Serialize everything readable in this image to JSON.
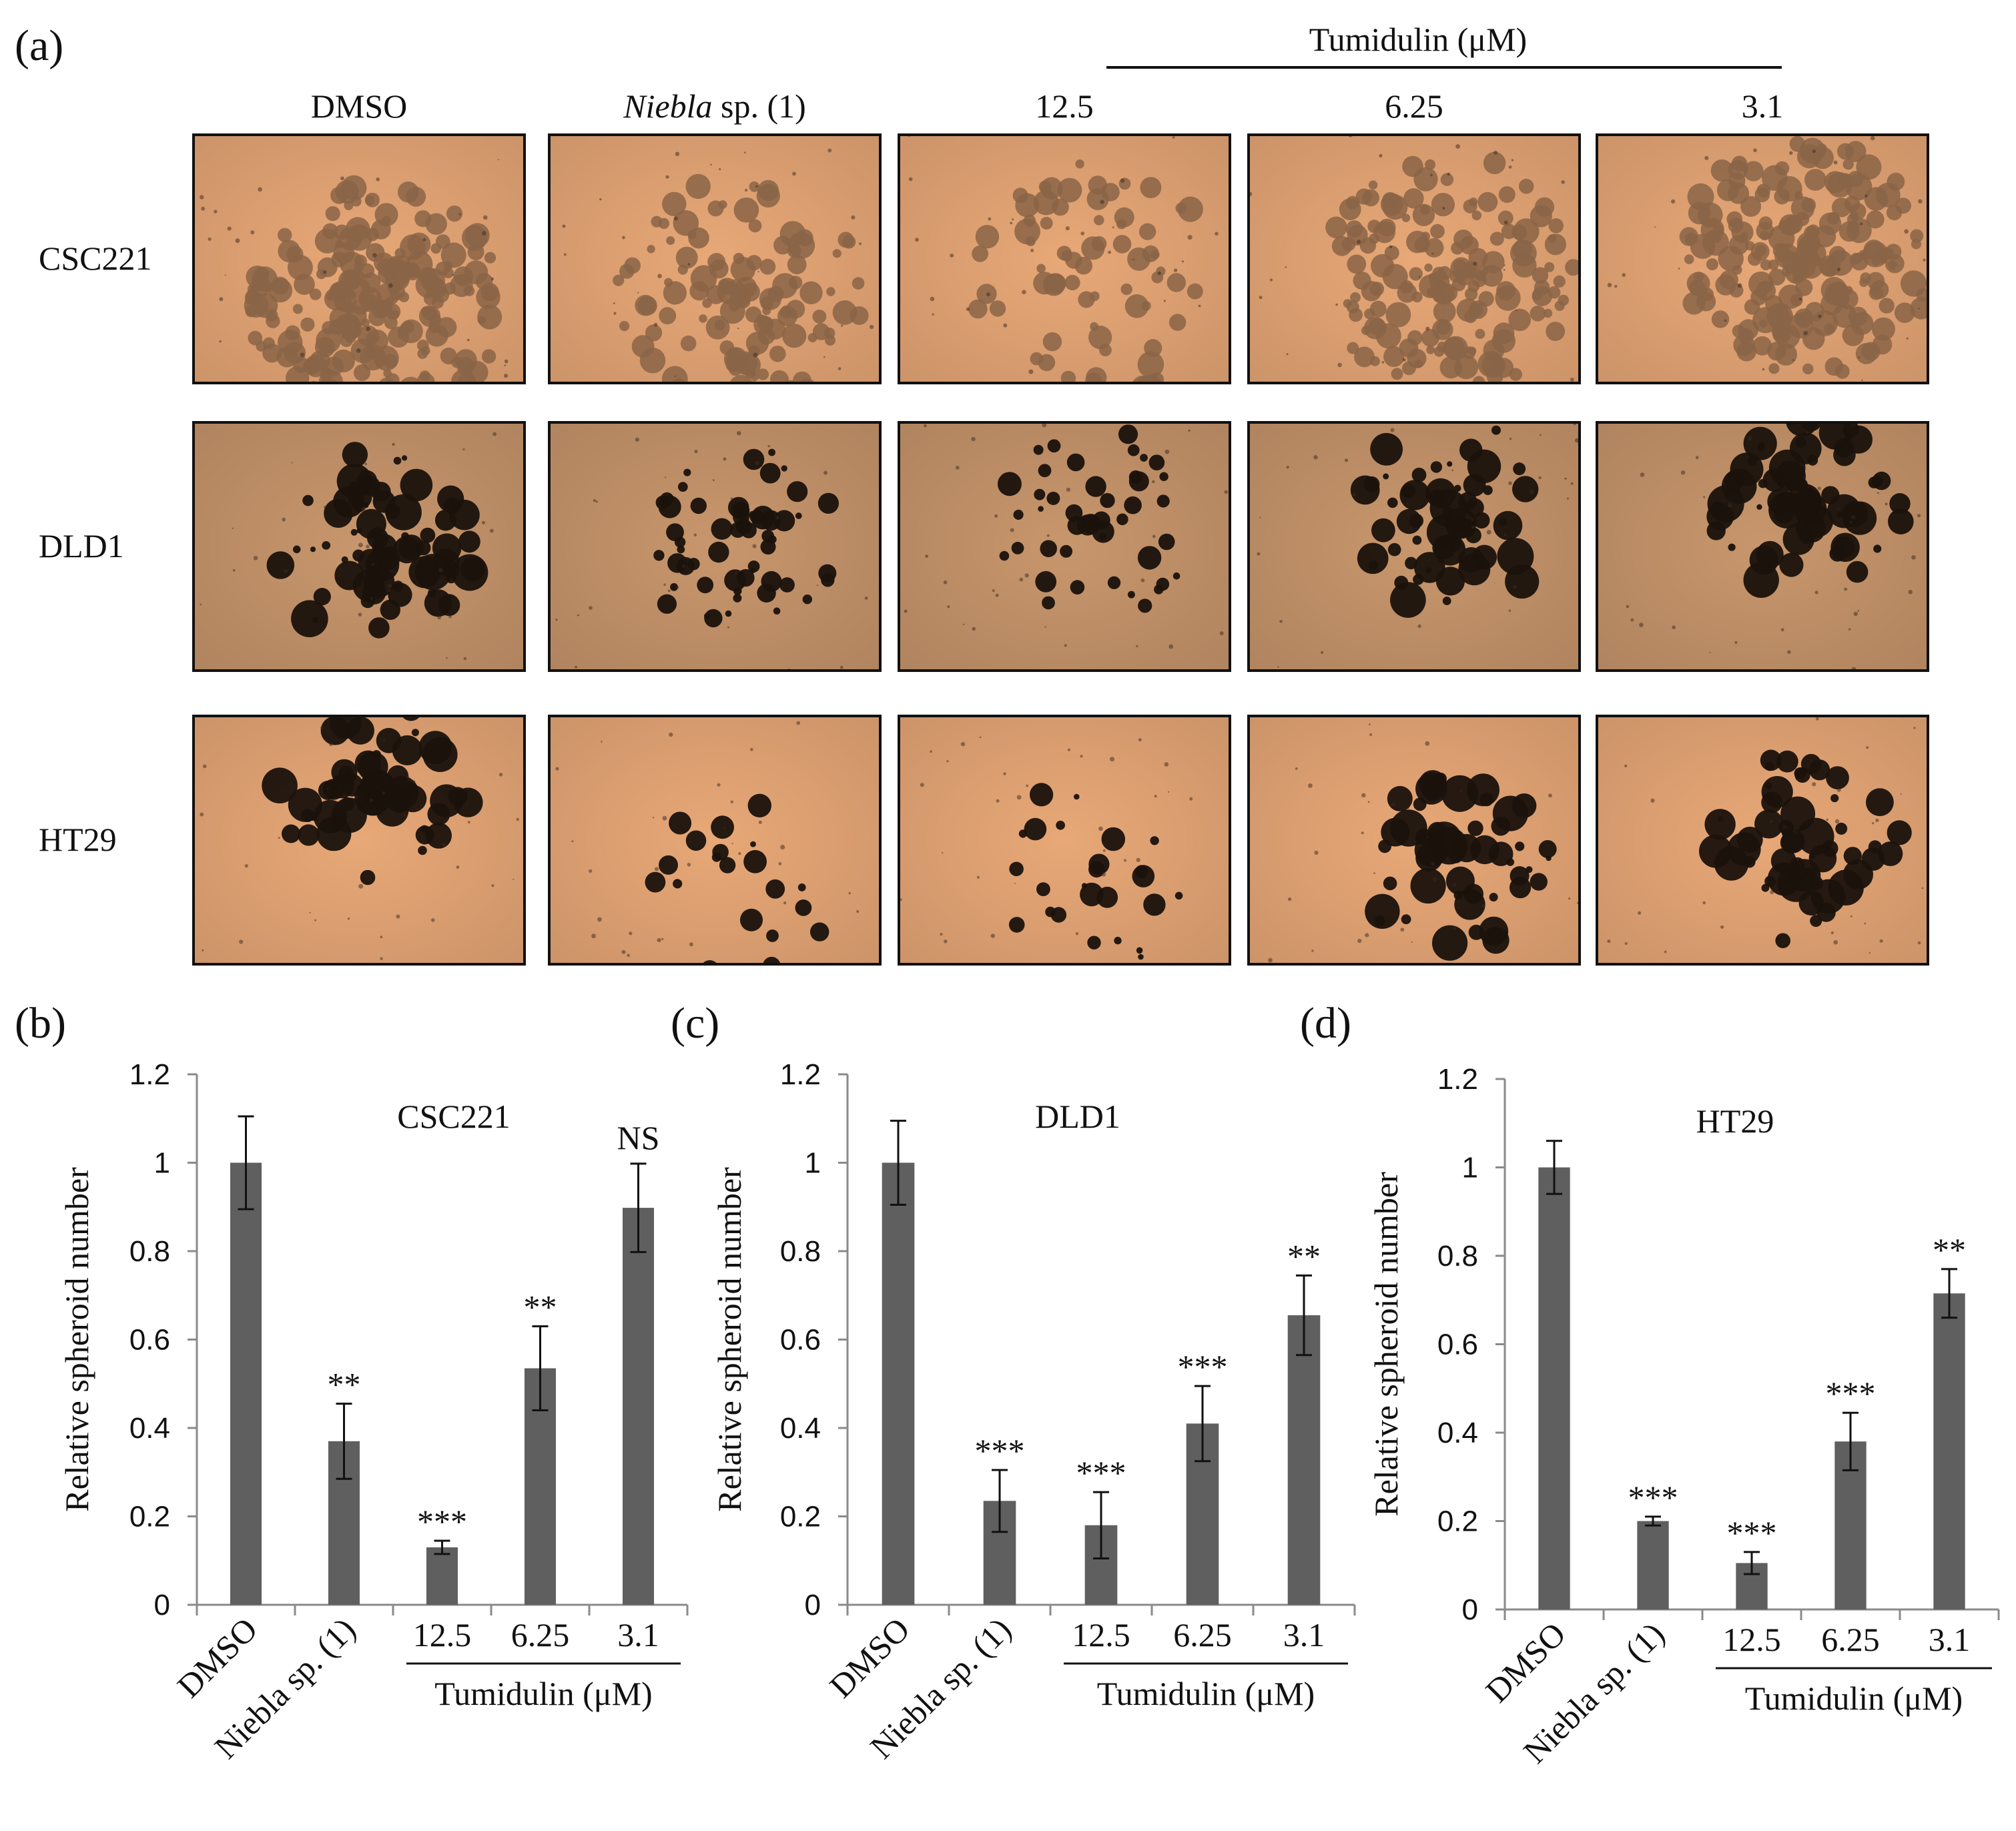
{
  "figure_a": {
    "panel_label": "(a)",
    "group_header": "Tumidulin (μM)",
    "columns": [
      {
        "label": "DMSO"
      },
      {
        "label_italic": "Niebla",
        "label_rest": " sp. (1)"
      },
      {
        "label": "12.5"
      },
      {
        "label": "6.25"
      },
      {
        "label": "3.1"
      }
    ],
    "rows": [
      "CSC221",
      "DLD1",
      "HT29"
    ],
    "colors": {
      "background": "#e8a877",
      "dark": "#1a120c",
      "cluster_csc": "#8a6446",
      "frame": "#111111"
    }
  },
  "chart_data": [
    {
      "panel_label": "(b)",
      "type": "bar",
      "title": "CSC221",
      "ylabel": "Relative  spheroid number",
      "xlabel_group": "Tumidulin (μM)",
      "categories": [
        "DMSO",
        "Niebla sp. (1)",
        "12.5",
        "6.25",
        "3.1"
      ],
      "values": [
        1.0,
        0.37,
        0.13,
        0.535,
        0.898
      ],
      "errors": [
        0.105,
        0.085,
        0.015,
        0.095,
        0.1
      ],
      "annotations": [
        "",
        "**",
        "***",
        "**",
        "NS"
      ],
      "ylim": [
        0,
        1.2
      ],
      "yticks": [
        "0",
        "0.2",
        "0.4",
        "0.6",
        "0.8",
        "1",
        "1.2"
      ],
      "bar_color": "#5f5f5f"
    },
    {
      "panel_label": "(c)",
      "type": "bar",
      "title": "DLD1",
      "ylabel": "Relative  spheroid number",
      "xlabel_group": "Tumidulin (μM)",
      "categories": [
        "DMSO",
        "Niebla sp. (1)",
        "12.5",
        "6.25",
        "3.1"
      ],
      "values": [
        1.0,
        0.235,
        0.18,
        0.41,
        0.655
      ],
      "errors": [
        0.095,
        0.07,
        0.075,
        0.085,
        0.09
      ],
      "annotations": [
        "",
        "***",
        "***",
        "***",
        "**"
      ],
      "ylim": [
        0,
        1.2
      ],
      "yticks": [
        "0",
        "0.2",
        "0.4",
        "0.6",
        "0.8",
        "1",
        "1.2"
      ],
      "bar_color": "#5f5f5f"
    },
    {
      "panel_label": "(d)",
      "type": "bar",
      "title": "HT29",
      "ylabel": "Relative  spheroid number",
      "xlabel_group": "Tumidulin (μM)",
      "categories": [
        "DMSO",
        "Niebla sp. (1)",
        "12.5",
        "6.25",
        "3.1"
      ],
      "values": [
        1.0,
        0.2,
        0.105,
        0.38,
        0.715
      ],
      "errors": [
        0.06,
        0.01,
        0.025,
        0.065,
        0.055
      ],
      "annotations": [
        "",
        "***",
        "***",
        "***",
        "**"
      ],
      "ylim": [
        0,
        1.2
      ],
      "yticks": [
        "0",
        "0.2",
        "0.4",
        "0.6",
        "0.8",
        "1",
        "1.2"
      ],
      "bar_color": "#5f5f5f"
    }
  ]
}
